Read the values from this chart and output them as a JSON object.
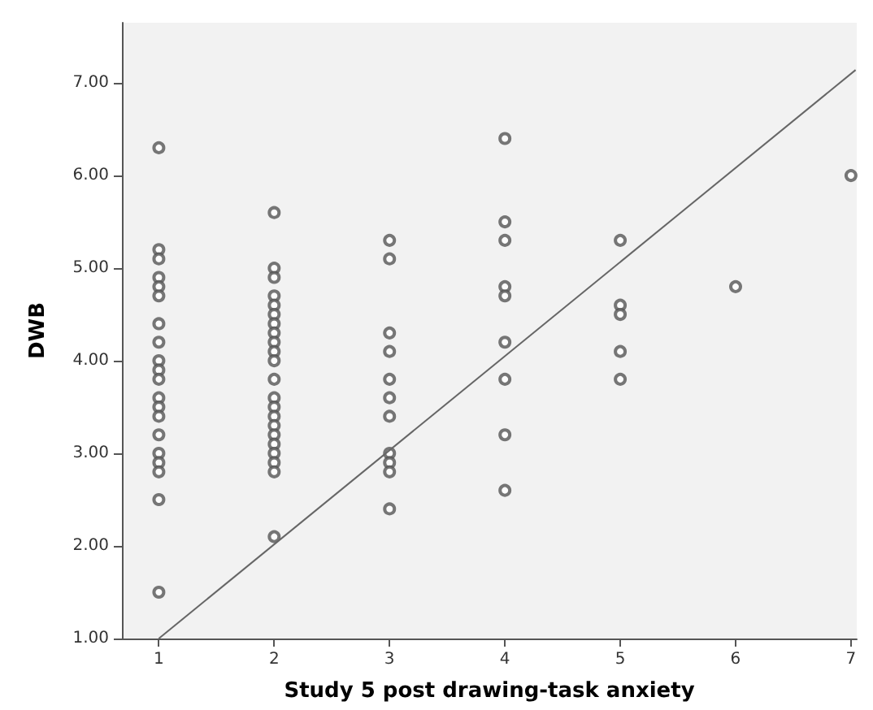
{
  "chart_data": {
    "type": "scatter",
    "xlabel": "Study 5 post drawing-task anxiety",
    "ylabel": "DWB",
    "marker": "circle",
    "grid": false,
    "xlim": [
      0.68,
      7.05
    ],
    "xticks": [
      1,
      2,
      3,
      4,
      5,
      6,
      7
    ],
    "ylim": [
      1,
      7.65
    ],
    "yticks": [
      {
        "value": 1,
        "label": "1.00"
      },
      {
        "value": 2,
        "label": "2.00"
      },
      {
        "value": 3,
        "label": "3.00"
      },
      {
        "value": 4,
        "label": "4.00"
      },
      {
        "value": 5,
        "label": "5.00"
      },
      {
        "value": 6,
        "label": "6.00"
      },
      {
        "value": 7,
        "label": "7.00"
      }
    ],
    "series": [
      {
        "color": "#555555",
        "x": [
          1,
          1,
          1,
          1,
          1,
          1,
          1,
          1,
          1,
          1,
          1,
          1,
          1,
          1,
          1,
          1,
          1,
          1,
          1,
          1,
          2,
          2,
          2,
          2,
          2,
          2,
          2,
          2,
          2,
          2,
          2,
          2,
          2,
          2,
          2,
          2,
          2,
          2,
          2,
          2,
          2,
          2,
          3,
          3,
          3,
          3,
          3,
          3,
          3,
          3,
          3,
          3,
          3,
          4,
          4,
          4,
          4,
          4,
          4,
          4,
          4,
          4,
          5,
          5,
          5,
          5,
          5,
          6,
          7
        ],
        "values": [
          6.3,
          5.2,
          5.1,
          4.9,
          4.8,
          4.7,
          4.4,
          4.2,
          4.0,
          3.9,
          3.8,
          3.6,
          3.5,
          3.4,
          3.2,
          3.0,
          2.9,
          2.8,
          2.5,
          1.5,
          5.6,
          5.0,
          4.9,
          4.7,
          4.6,
          4.5,
          4.4,
          4.3,
          4.2,
          4.1,
          4.0,
          3.8,
          3.6,
          3.5,
          3.4,
          3.3,
          3.2,
          3.1,
          3.0,
          2.9,
          2.8,
          2.1,
          5.3,
          5.1,
          4.3,
          4.1,
          3.8,
          3.6,
          3.4,
          3.0,
          2.9,
          2.8,
          2.4,
          6.4,
          5.5,
          5.3,
          4.8,
          4.7,
          4.2,
          3.8,
          3.2,
          2.6,
          5.3,
          4.6,
          4.5,
          4.1,
          3.8,
          4.8,
          6.0
        ]
      },
      {
        "type": "line",
        "color": "#666666",
        "marker": "none",
        "x": [
          1,
          7.04
        ],
        "values": [
          1,
          7.14
        ]
      }
    ]
  }
}
